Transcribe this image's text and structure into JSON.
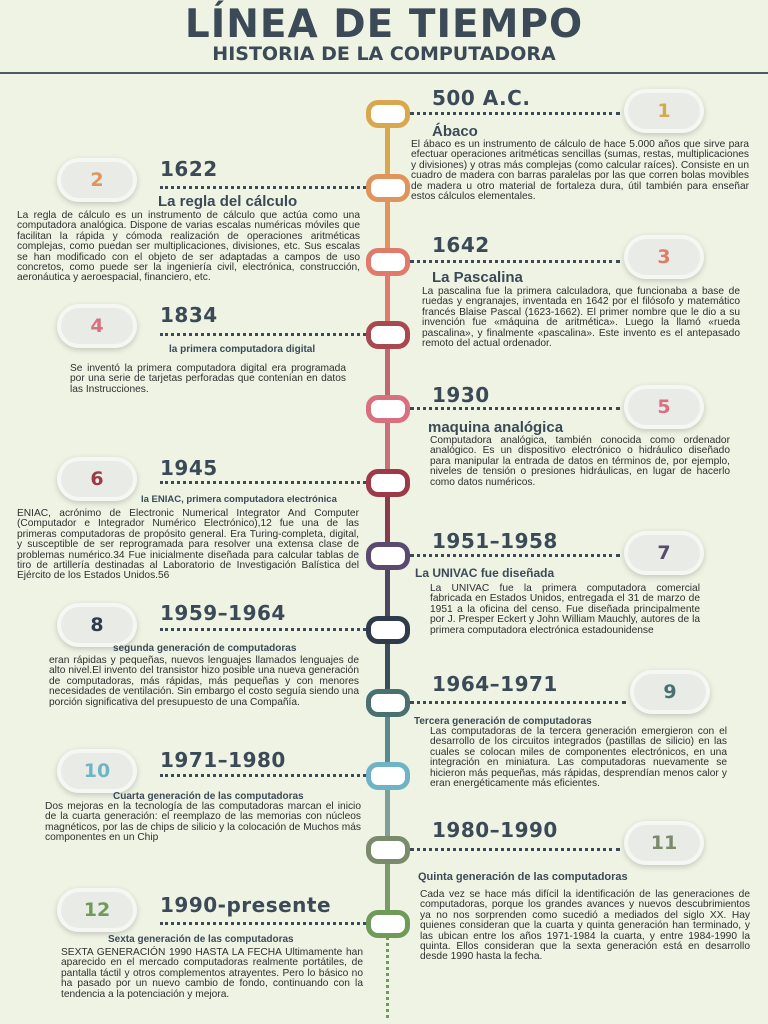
{
  "header": {
    "title": "LÍNEA DE TIEMPO",
    "subtitle": "HISTORIA DE LA COMPUTADORA"
  },
  "colors": {
    "background": "#eef3e4",
    "heading": "#3c4a57",
    "dot_1": "#d9a84e",
    "dot_2": "#e0935a",
    "dot_3": "#e07a6a",
    "dot_4": "#a8494f",
    "dot_5": "#d9707f",
    "dot_6": "#9c3a4a",
    "dot_7": "#5a4a6e",
    "dot_8": "#2f3a4a",
    "dot_9": "#4a7070",
    "dot_10": "#6fb4c6",
    "dot_11": "#7a8a6a",
    "dot_12": "#6f9a5a"
  },
  "events": [
    {
      "num": "1",
      "year": "500 A.C.",
      "title": "Ábaco",
      "text": "El ábaco es un instrumento de cálculo de hace 5.000 años que sirve para efectuar operaciones aritméticas sencillas (sumas, restas, multiplicaciones y divisiones) y otras más complejas (como calcular raíces). Consiste en un cuadro de madera con barras paralelas por las que corren bolas movibles de madera u otro material de fortaleza dura, útil también para enseñar estos cálculos elementales."
    },
    {
      "num": "2",
      "year": "1622",
      "title": "La regla del cálculo",
      "text": "La regla de cálculo es un instrumento de cálculo que actúa como una computadora analógica. Dispone de varias escalas numéricas móviles que facilitan la rápida y cómoda realización de operaciones aritméticas complejas, como puedan ser multiplicaciones, divisiones, etc. Sus escalas se han modificado con el objeto de ser adaptadas a campos de uso concretos, como puede ser la ingeniería civil, electrónica, construcción, aeronáutica y aeroespacial, financiero, etc."
    },
    {
      "num": "3",
      "year": "1642",
      "title": "La Pascalina",
      "text": "La pascalina fue la primera calculadora, que funcionaba a base de ruedas y engranajes, inventada en 1642 por el filósofo y matemático francés Blaise Pascal (1623-1662). El primer nombre que le dio a su invención fue «máquina de aritmética». Luego la llamó «rueda pascalina», y finalmente «pascalina». Este invento es el antepasado remoto del actual ordenador."
    },
    {
      "num": "4",
      "year": "1834",
      "title": "la primera computadora digital",
      "text": "Se inventó la primera computadora digital era programada por una serie de tarjetas perforadas que contenían en datos las Instrucciones."
    },
    {
      "num": "5",
      "year": "1930",
      "title": "maquina analógica",
      "text": "Computadora analógica, también conocida como ordenador analógico. Es un dispositivo electrónico o hidráulico diseñado para manipular la entrada de datos en términos de, por ejemplo, niveles de tensión o presiones hidráulicas, en lugar de hacerlo como datos numéricos."
    },
    {
      "num": "6",
      "year": "1945",
      "title": "la ENIAC, primera computadora electrónica",
      "text": "ENIAC, acrónimo de Electronic Numerical Integrator And Computer (Computador e Integrador Numérico Electrónico),12 fue una de las primeras computadoras de propósito general. Era Turing-completa, digital, y susceptible de ser reprogramada para resolver una extensa clase de problemas numérico.34 Fue inicialmente diseñada para calcular tablas de tiro de artillería destinadas al Laboratorio de Investigación Balística del Ejército de los Estados Unidos.56"
    },
    {
      "num": "7",
      "year": "1951–1958",
      "title": "La UNIVAC fue diseñada",
      "text": "La UNIVAC fue la primera computadora comercial fabricada en Estados Unidos, entregada el 31 de marzo de 1951 a la oficina del censo. Fue diseñada principalmente por J. Presper Eckert y John William Mauchly, autores de la primera computadora electrónica estadounidense"
    },
    {
      "num": "8",
      "year": "1959–1964",
      "title": "segunda generación de computadoras",
      "text": "eran rápidas y pequeñas, nuevos lenguajes llamados lenguajes de alto nivel.El invento del transistor hizo posible una nueva generación de computadoras, más rápidas, más pequeñas y con menores necesidades de ventilación. Sin embargo el costo seguía siendo una porción significativa del presupuesto de una Compañía."
    },
    {
      "num": "9",
      "year": "1964–1971",
      "title": "Tercera generación de computadoras",
      "text": "Las computadoras de la tercera generación emergieron con el desarrollo de los circuitos integrados (pastillas de silicio) en las cuales se colocan miles de componentes electrónicos, en una integración en miniatura. Las computadoras nuevamente se hicieron más pequeñas, más rápidas, desprendían menos calor y eran energéticamente más eficientes."
    },
    {
      "num": "10",
      "year": "1971–1980",
      "title": "Cuarta generación de las computadoras",
      "text": "Dos mejoras en la tecnología de las computadoras marcan el inicio de la cuarta generación: el reemplazo de las memorias con núcleos magnéticos, por las de chips de silicio y la colocación de Muchos más componentes en un Chip"
    },
    {
      "num": "11",
      "year": "1980–1990",
      "title": "Quinta generación de las computadoras",
      "text": "Cada vez se hace más difícil la identificación de las generaciones de computadoras, porque los grandes avances y nuevos descubrimientos ya no nos sorprenden como sucedió a mediados del siglo XX. Hay quienes consideran que la cuarta y quinta generación han terminado, y las ubican entre los años 1971-1984 la cuarta, y entre 1984-1990 la quinta. Ellos consideran que la sexta generación está en desarrollo desde 1990 hasta la fecha."
    },
    {
      "num": "12",
      "year": "1990-presente",
      "title": "Sexta generación de las computadoras",
      "text": "SEXTA GENERACIÓN 1990 HASTA LA FECHA Ultimamente han aparecido en el mercado computadoras realmente portátiles, de pantalla táctil y otros complementos atrayentes. Pero lo básico no ha pasado por un nuevo cambio de fondo, continuando con la tendencia a la potenciación y mejora."
    }
  ]
}
